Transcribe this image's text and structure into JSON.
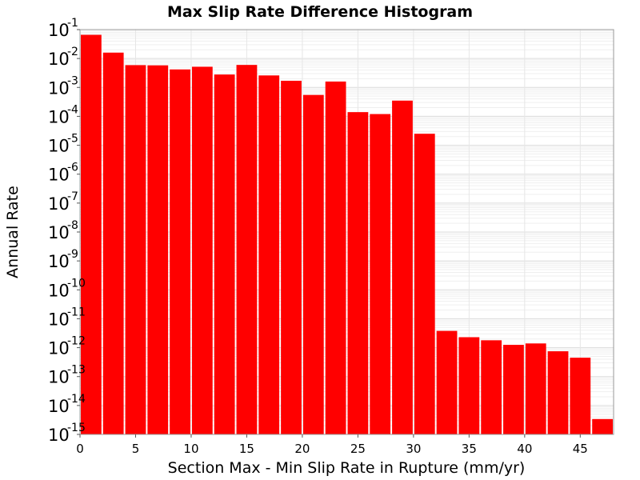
{
  "chart_data": {
    "type": "bar",
    "title": "Max Slip Rate Difference Histogram",
    "xlabel": "Section Max - Min Slip Rate in Rupture (mm/yr)",
    "ylabel": "Annual Rate",
    "y_scale": "log",
    "xlim": [
      0,
      48
    ],
    "ylim": [
      1e-15,
      0.1
    ],
    "x_ticks": [
      "0",
      "5",
      "10",
      "15",
      "20",
      "25",
      "30",
      "35",
      "40",
      "45"
    ],
    "y_ticks": [
      {
        "base": "10",
        "exp": "-1"
      },
      {
        "base": "10",
        "exp": "-2"
      },
      {
        "base": "10",
        "exp": "-3"
      },
      {
        "base": "10",
        "exp": "-4"
      },
      {
        "base": "10",
        "exp": "-5"
      },
      {
        "base": "10",
        "exp": "-6"
      },
      {
        "base": "10",
        "exp": "-7"
      },
      {
        "base": "10",
        "exp": "-8"
      },
      {
        "base": "10",
        "exp": "-9"
      },
      {
        "base": "10",
        "exp": "-10"
      },
      {
        "base": "10",
        "exp": "-11"
      },
      {
        "base": "10",
        "exp": "-12"
      },
      {
        "base": "10",
        "exp": "-13"
      },
      {
        "base": "10",
        "exp": "-14"
      },
      {
        "base": "10",
        "exp": "-15"
      }
    ],
    "bar_width": 2,
    "bar_color": "#ff0000",
    "grid": true,
    "x": [
      1,
      3,
      5,
      7,
      9,
      11,
      13,
      15,
      17,
      19,
      21,
      23,
      25,
      27,
      29,
      31,
      33,
      35,
      37,
      39,
      41,
      43,
      45,
      47
    ],
    "values": [
      0.066,
      0.016,
      0.0059,
      0.0058,
      0.0042,
      0.0052,
      0.0028,
      0.006,
      0.0026,
      0.0017,
      0.00055,
      0.0016,
      0.00014,
      0.00012,
      0.00035,
      2.5e-05,
      3.8e-12,
      2.3e-12,
      1.8e-12,
      1.25e-12,
      1.4e-12,
      7.5e-13,
      4.5e-13,
      3.4e-15
    ]
  }
}
